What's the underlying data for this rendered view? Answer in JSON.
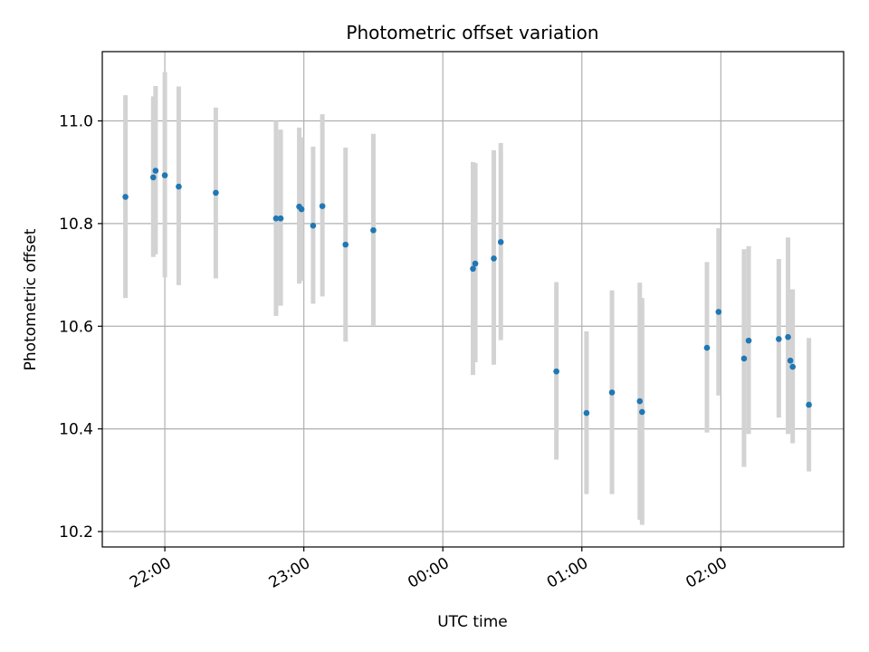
{
  "chart_data": {
    "type": "scatter",
    "title": "Photometric offset variation",
    "xlabel": "UTC time",
    "ylabel": "Photometric offset",
    "x_unit": "UTC time (HH:MM)",
    "xlim": [
      "21:33",
      "02:53"
    ],
    "ylim": [
      10.17,
      11.135
    ],
    "x_ticks": [
      "22:00",
      "23:00",
      "00:00",
      "01:00",
      "02:00"
    ],
    "y_ticks": [
      "10.2",
      "10.4",
      "10.6",
      "10.8",
      "11.0"
    ],
    "grid": true,
    "colors": {
      "point": "#1f77b4",
      "errorbar": "#d3d3d3"
    },
    "points": [
      {
        "x": "21:43",
        "y": 10.852,
        "ylow": 10.655,
        "yhigh": 11.05
      },
      {
        "x": "21:55",
        "y": 10.89,
        "ylow": 10.735,
        "yhigh": 11.048
      },
      {
        "x": "21:56",
        "y": 10.903,
        "ylow": 10.74,
        "yhigh": 11.068
      },
      {
        "x": "22:00",
        "y": 10.894,
        "ylow": 10.695,
        "yhigh": 11.095
      },
      {
        "x": "22:06",
        "y": 10.872,
        "ylow": 10.68,
        "yhigh": 11.067
      },
      {
        "x": "22:22",
        "y": 10.86,
        "ylow": 10.693,
        "yhigh": 11.026
      },
      {
        "x": "22:48",
        "y": 10.81,
        "ylow": 10.62,
        "yhigh": 11.0
      },
      {
        "x": "22:50",
        "y": 10.81,
        "ylow": 10.64,
        "yhigh": 10.983
      },
      {
        "x": "22:58",
        "y": 10.833,
        "ylow": 10.683,
        "yhigh": 10.987
      },
      {
        "x": "22:59",
        "y": 10.828,
        "ylow": 10.688,
        "yhigh": 10.968
      },
      {
        "x": "23:04",
        "y": 10.796,
        "ylow": 10.644,
        "yhigh": 10.95
      },
      {
        "x": "23:08",
        "y": 10.834,
        "ylow": 10.658,
        "yhigh": 11.013
      },
      {
        "x": "23:18",
        "y": 10.759,
        "ylow": 10.57,
        "yhigh": 10.948
      },
      {
        "x": "23:30",
        "y": 10.787,
        "ylow": 10.6,
        "yhigh": 10.975
      },
      {
        "x": "00:13",
        "y": 10.712,
        "ylow": 10.505,
        "yhigh": 10.92
      },
      {
        "x": "00:14",
        "y": 10.722,
        "ylow": 10.53,
        "yhigh": 10.918
      },
      {
        "x": "00:22",
        "y": 10.732,
        "ylow": 10.525,
        "yhigh": 10.943
      },
      {
        "x": "00:25",
        "y": 10.764,
        "ylow": 10.573,
        "yhigh": 10.957
      },
      {
        "x": "00:49",
        "y": 10.512,
        "ylow": 10.34,
        "yhigh": 10.686
      },
      {
        "x": "01:02",
        "y": 10.431,
        "ylow": 10.273,
        "yhigh": 10.59
      },
      {
        "x": "01:13",
        "y": 10.471,
        "ylow": 10.273,
        "yhigh": 10.67
      },
      {
        "x": "01:25",
        "y": 10.454,
        "ylow": 10.223,
        "yhigh": 10.685
      },
      {
        "x": "01:26",
        "y": 10.433,
        "ylow": 10.213,
        "yhigh": 10.655
      },
      {
        "x": "01:54",
        "y": 10.558,
        "ylow": 10.393,
        "yhigh": 10.725
      },
      {
        "x": "01:59",
        "y": 10.628,
        "ylow": 10.465,
        "yhigh": 10.791
      },
      {
        "x": "02:10",
        "y": 10.537,
        "ylow": 10.326,
        "yhigh": 10.75
      },
      {
        "x": "02:12",
        "y": 10.572,
        "ylow": 10.39,
        "yhigh": 10.756
      },
      {
        "x": "02:25",
        "y": 10.575,
        "ylow": 10.422,
        "yhigh": 10.731
      },
      {
        "x": "02:29",
        "y": 10.579,
        "ylow": 10.39,
        "yhigh": 10.773
      },
      {
        "x": "02:30",
        "y": 10.533,
        "ylow": 10.395,
        "yhigh": 10.672
      },
      {
        "x": "02:31",
        "y": 10.521,
        "ylow": 10.372,
        "yhigh": 10.672
      },
      {
        "x": "02:38",
        "y": 10.447,
        "ylow": 10.317,
        "yhigh": 10.577
      }
    ]
  }
}
